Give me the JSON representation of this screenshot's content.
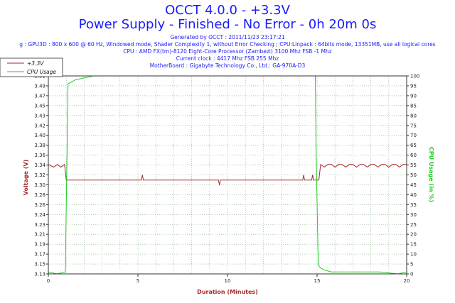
{
  "title": "OCCT 4.0.0 - +3.3V",
  "subtitle": "Power Supply - Finished - No Error - 0h 20m 0s",
  "info_lines": [
    "Generated by OCCT : 2011/11/23 23:17:21",
    "g : GPU3D : 800 x 600 @ 60 Hz, Windowed mode, Shader Complexity 1, without Error Checking ; CPU:Linpack : 64bits mode, 13351MB, use all logical cores",
    "CPU : AMD FX(tm)-8120 Eight-Core Processor (Zambezi) 3100 Mhz FSB -1 Mhz",
    "Current clock : 4417 Mhz FSB 255 Mhz",
    "MotherBoard : Gigabyte Technology Co., Ltd.: GA-970A-D3"
  ],
  "colors": {
    "title": "#1a1aff",
    "voltage": "#a52a2a",
    "cpu": "#22cc22"
  },
  "chart_data": {
    "type": "line",
    "xlabel": "Duration (Minutes)",
    "ylabel_left": "Voltage (V)",
    "ylabel_right": "CPU Usage (in %)",
    "xlim": [
      0,
      20
    ],
    "ylim_left": [
      3.13,
      3.51
    ],
    "ylim_right": [
      0,
      100
    ],
    "x_ticks": [
      0,
      5,
      10,
      15,
      20
    ],
    "y_ticks_left": [
      3.13,
      3.15,
      3.17,
      3.19,
      3.21,
      3.23,
      3.24,
      3.26,
      3.28,
      3.3,
      3.32,
      3.34,
      3.36,
      3.38,
      3.4,
      3.42,
      3.43,
      3.45,
      3.47,
      3.49,
      3.51
    ],
    "y_ticks_right": [
      0,
      5,
      10,
      15,
      20,
      25,
      30,
      35,
      40,
      45,
      50,
      55,
      60,
      65,
      70,
      75,
      80,
      85,
      90,
      95,
      100
    ],
    "grid": true,
    "legend": "top-left",
    "series": [
      {
        "name": "+3.3V",
        "axis": "left",
        "x": [
          0,
          0.3,
          0.5,
          0.7,
          0.9,
          1.0,
          1.05,
          5.2,
          5.25,
          5.3,
          9.5,
          9.55,
          9.6,
          14.2,
          14.25,
          14.3,
          14.7,
          14.75,
          14.8,
          15.1,
          15.2,
          15.4,
          15.6,
          15.8,
          16.0,
          16.2,
          16.4,
          16.6,
          16.8,
          17.0,
          17.2,
          17.4,
          17.6,
          17.8,
          18.0,
          18.2,
          18.4,
          18.6,
          18.8,
          19.0,
          19.2,
          19.4,
          19.6,
          19.8,
          20.0
        ],
        "y": [
          3.34,
          3.335,
          3.34,
          3.335,
          3.34,
          3.31,
          3.31,
          3.31,
          3.32,
          3.31,
          3.31,
          3.3,
          3.31,
          3.31,
          3.32,
          3.31,
          3.31,
          3.32,
          3.31,
          3.31,
          3.34,
          3.335,
          3.34,
          3.34,
          3.335,
          3.34,
          3.34,
          3.335,
          3.34,
          3.34,
          3.335,
          3.34,
          3.34,
          3.335,
          3.34,
          3.34,
          3.335,
          3.34,
          3.34,
          3.335,
          3.34,
          3.34,
          3.335,
          3.34,
          3.34
        ]
      },
      {
        "name": "CPU Usage",
        "axis": "right",
        "x": [
          0,
          0.5,
          0.95,
          1.1,
          1.3,
          1.5,
          2.0,
          2.5,
          3.0,
          3.5,
          4.0,
          5.0,
          6.0,
          7.0,
          8.0,
          9.0,
          10.0,
          11.0,
          12.0,
          13.0,
          14.0,
          14.9,
          14.95,
          15.05,
          15.1,
          15.2,
          15.4,
          15.8,
          16.5,
          17.5,
          18.5,
          19.5,
          20.0
        ],
        "y": [
          1,
          0,
          1,
          96,
          97,
          98,
          99,
          100,
          100,
          100,
          100,
          100,
          100,
          100,
          100,
          100,
          100,
          100,
          100,
          100,
          100,
          100,
          60,
          12,
          4,
          3,
          2,
          1,
          1,
          1,
          1,
          0,
          1
        ]
      }
    ]
  }
}
